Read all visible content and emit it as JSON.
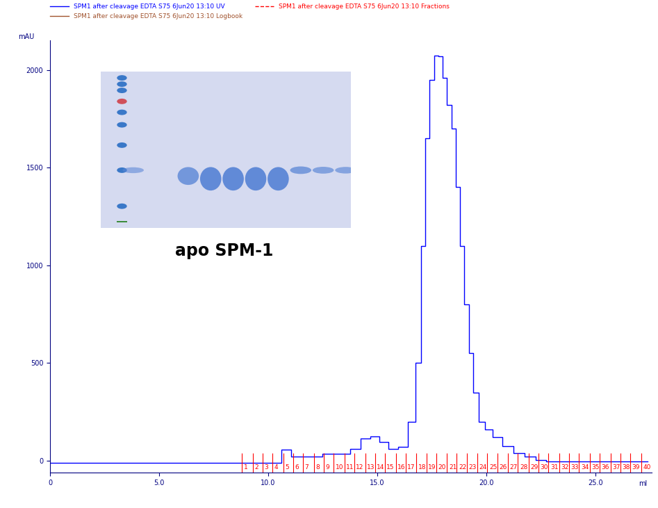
{
  "chart_data": {
    "type": "line",
    "x_label": "ml",
    "y_label": "mAU",
    "annotations": [
      "apo SPM-1"
    ],
    "xlim": [
      0,
      27.6
    ],
    "ylim": [
      -60,
      2150
    ],
    "xticks": [
      0,
      {
        "value": 5,
        "label": "5.0"
      },
      {
        "value": 10,
        "label": "10.0"
      },
      {
        "value": 15,
        "label": "15.0"
      },
      {
        "value": 20,
        "label": "20.0"
      },
      {
        "value": 25,
        "label": "25.0"
      }
    ],
    "yticks": [
      0,
      500,
      1000,
      1500,
      2000
    ],
    "grid": false,
    "legend": "upper left",
    "series": [
      {
        "name": "SPM1 after cleavage EDTA S75 6Jun20 13:10 UV",
        "color": "#0000ff",
        "type": "line",
        "x": [
          0,
          10.5,
          10.7,
          10.9,
          11.2,
          11.5,
          13.5,
          14.0,
          14.5,
          14.9,
          15.3,
          15.7,
          16.2,
          16.6,
          16.9,
          17.1,
          17.3,
          17.5,
          17.7,
          17.9,
          18.1,
          18.3,
          18.5,
          18.7,
          18.9,
          19.1,
          19.3,
          19.5,
          19.8,
          20.1,
          20.5,
          21.0,
          21.5,
          22.0,
          22.5,
          23.0,
          27.4
        ],
        "values": [
          -10,
          -10,
          55,
          55,
          20,
          20,
          35,
          60,
          115,
          125,
          95,
          60,
          70,
          200,
          500,
          1100,
          1650,
          1950,
          2075,
          2070,
          1960,
          1820,
          1700,
          1400,
          1100,
          800,
          550,
          350,
          200,
          160,
          120,
          75,
          40,
          20,
          5,
          -5,
          -5
        ]
      },
      {
        "name": "SPM1 after cleavage EDTA S75 6Jun20 13:10 Logbook",
        "color": "#a0522d",
        "type": "line",
        "x": [],
        "values": []
      },
      {
        "name": "SPM1 after cleavage EDTA S75 6Jun20 13:10 Fractions",
        "color": "#ff0000",
        "type": "fractions",
        "x": [
          8.8,
          9.3,
          9.75,
          10.2,
          10.7,
          11.15,
          11.6,
          12.1,
          12.55,
          13.0,
          13.5,
          13.95,
          14.45,
          14.9,
          15.35,
          15.85,
          16.3,
          16.8,
          17.25,
          17.7,
          18.2,
          18.65,
          19.1,
          19.6,
          20.05,
          20.5,
          21.0,
          21.45,
          21.95,
          22.4,
          22.85,
          23.35,
          23.8,
          24.25,
          24.75,
          25.2,
          25.7,
          26.15,
          26.6,
          27.1
        ],
        "labels": [
          "1",
          "2",
          "3",
          "4",
          "5",
          "6",
          "7",
          "8",
          "9",
          "10",
          "11",
          "12",
          "13",
          "14",
          "15",
          "16",
          "17",
          "18",
          "19",
          "20",
          "21",
          "22",
          "23",
          "24",
          "25",
          "26",
          "27",
          "28",
          "29",
          "30",
          "31",
          "32",
          "33",
          "34",
          "35",
          "36",
          "37",
          "38",
          "39",
          "40"
        ]
      }
    ]
  }
}
